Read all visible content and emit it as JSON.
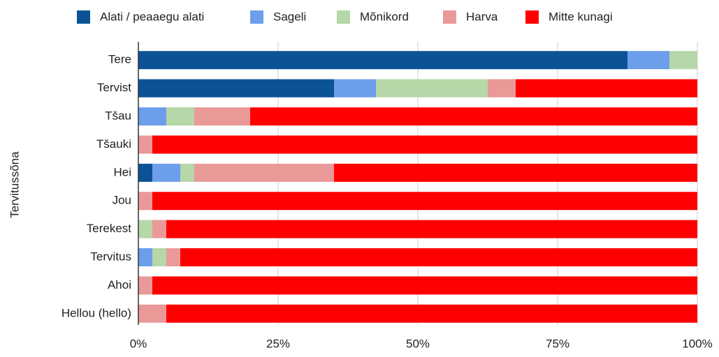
{
  "chart_data": {
    "type": "stacked_barh",
    "y_label": "Tervitussõna",
    "categories": [
      "Tere",
      "Tervist",
      "Tšau",
      "Tšauki",
      "Hei",
      "Jou",
      "Terekest",
      "Tervitus",
      "Ahoi",
      "Hellou (hello)"
    ],
    "series": [
      {
        "name": "Alati / peaaegu alati",
        "color": "#0b5394",
        "values": [
          87.5,
          35,
          0,
          0,
          2.5,
          0,
          0,
          0,
          0,
          0
        ]
      },
      {
        "name": "Sageli",
        "color": "#6d9eeb",
        "values": [
          7.5,
          7.5,
          5,
          0,
          5,
          0,
          0,
          2.5,
          0,
          0
        ]
      },
      {
        "name": "Mõnikord",
        "color": "#b6d7a8",
        "values": [
          5,
          20,
          5,
          0,
          2.5,
          0,
          2.5,
          2.5,
          0,
          0
        ]
      },
      {
        "name": "Harva",
        "color": "#ea9999",
        "values": [
          0,
          5,
          10,
          2.5,
          25,
          2.5,
          2.5,
          2.5,
          2.5,
          5
        ]
      },
      {
        "name": "Mitte kunagi",
        "color": "#ff0000",
        "values": [
          0,
          32.5,
          80,
          97.5,
          65,
          97.5,
          95,
          92.5,
          97.5,
          95
        ]
      }
    ],
    "xlim": [
      0,
      100
    ],
    "xticks": [
      {
        "value": 0,
        "label": "0%"
      },
      {
        "value": 25,
        "label": "25%"
      },
      {
        "value": 50,
        "label": "50%"
      },
      {
        "value": 75,
        "label": "75%"
      },
      {
        "value": 100,
        "label": "100%"
      }
    ],
    "grid": true,
    "legend": "top"
  }
}
